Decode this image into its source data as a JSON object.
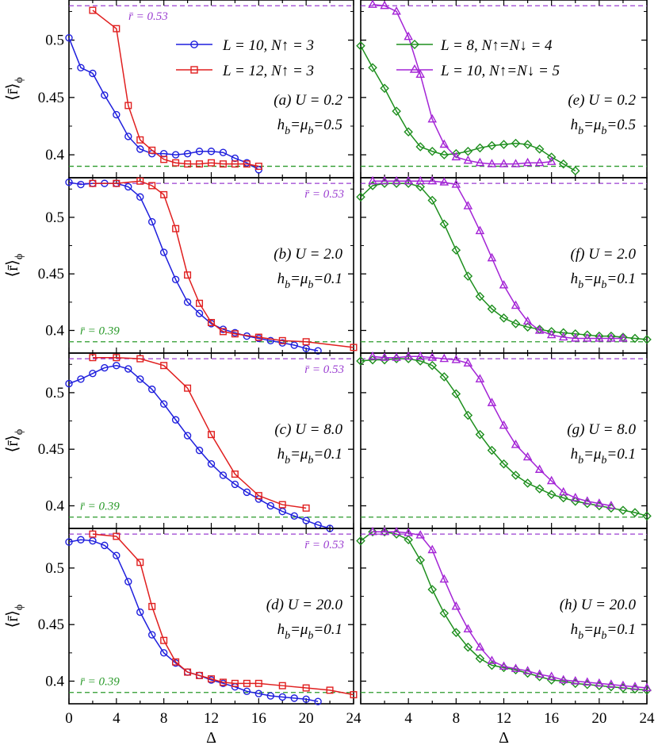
{
  "colors": {
    "blue": "#1f1fdd",
    "red": "#e01f1f",
    "green": "#1e8f1e",
    "purple": "#a424d6",
    "ref_green": "#2a9a2a",
    "ref_purple": "#9b3fd1"
  },
  "labels": {
    "xlabel": "Δ",
    "ylabel": "⟨r̄⟩",
    "ylabel_sub": "ϕ",
    "ref_high": "r̄ = 0.53",
    "ref_low": "r̄ = 0.39"
  },
  "legend": {
    "left": [
      {
        "text": "L = 10, N↑ = 3",
        "color": "#1f1fdd",
        "marker": "circle"
      },
      {
        "text": "L = 12, N↑ = 3",
        "color": "#e01f1f",
        "marker": "square"
      }
    ],
    "right": [
      {
        "text": "L = 8, N↑=N↓ = 4",
        "color": "#1e8f1e",
        "marker": "diamond"
      },
      {
        "text": "L = 10, N↑=N↓ = 5",
        "color": "#a424d6",
        "marker": "triangle"
      }
    ]
  },
  "chart_data": {
    "type": "line",
    "ylim": [
      0.38,
      0.535
    ],
    "yticks": [
      0.4,
      0.45,
      0.5
    ],
    "ytick_labels": [
      "0.4",
      "0.45",
      "0.5"
    ],
    "reference_lines": [
      0.53,
      0.39
    ],
    "columns": [
      {
        "xlim": [
          0,
          24
        ],
        "xticks": [
          0,
          4,
          8,
          12,
          16,
          20,
          24
        ],
        "xtick_labels": [
          "0",
          "4",
          "8",
          "12",
          "16",
          "20",
          "24"
        ]
      },
      {
        "xlim": [
          0,
          24
        ],
        "xticks": [
          4,
          8,
          12,
          16,
          20,
          24
        ],
        "xtick_labels": [
          "4",
          "8",
          "12",
          "16",
          "20",
          "24"
        ]
      }
    ],
    "panels": [
      {
        "id": "a",
        "col": 0,
        "row": 0,
        "label": "(a) U = 0.2",
        "sublabel": "hb=μb=0.5",
        "show_ref_high_label": true,
        "show_ref_low_label": false,
        "series": [
          {
            "name": "L = 10, N↑ = 3",
            "color": "#1f1fdd",
            "marker": "circle",
            "x": [
              0,
              1,
              2,
              3,
              4,
              5,
              6,
              7,
              8,
              9,
              10,
              11,
              12,
              13,
              14,
              15,
              16
            ],
            "y": [
              0.502,
              0.476,
              0.471,
              0.452,
              0.435,
              0.416,
              0.405,
              0.401,
              0.401,
              0.4,
              0.401,
              0.403,
              0.403,
              0.402,
              0.397,
              0.393,
              0.387
            ]
          },
          {
            "name": "L = 12, N↑ = 3",
            "color": "#e01f1f",
            "marker": "square",
            "x": [
              2,
              4,
              5,
              6,
              7,
              8,
              9,
              10,
              11,
              12,
              13,
              14,
              15,
              16
            ],
            "y": [
              0.526,
              0.51,
              0.443,
              0.413,
              0.404,
              0.396,
              0.393,
              0.392,
              0.392,
              0.393,
              0.392,
              0.392,
              0.392,
              0.39
            ]
          }
        ]
      },
      {
        "id": "b",
        "col": 0,
        "row": 1,
        "label": "(b) U = 2.0",
        "sublabel": "hb=μb=0.1",
        "show_ref_high_label": true,
        "show_ref_low_label": true,
        "series": [
          {
            "name": "L = 10, N↑ = 3",
            "color": "#1f1fdd",
            "marker": "circle",
            "x": [
              0,
              1,
              2,
              3,
              4,
              5,
              6,
              7,
              8,
              9,
              10,
              11,
              12,
              13,
              14,
              15,
              16,
              17,
              18,
              19,
              20,
              21
            ],
            "y": [
              0.531,
              0.529,
              0.53,
              0.53,
              0.53,
              0.527,
              0.518,
              0.496,
              0.469,
              0.445,
              0.425,
              0.415,
              0.406,
              0.401,
              0.398,
              0.395,
              0.393,
              0.391,
              0.389,
              0.387,
              0.384,
              0.382
            ]
          },
          {
            "name": "L = 12, N↑ = 3",
            "color": "#e01f1f",
            "marker": "square",
            "x": [
              2,
              4,
              6,
              7,
              8,
              9,
              10,
              11,
              12,
              13,
              14,
              16,
              18,
              20,
              24
            ],
            "y": [
              0.53,
              0.53,
              0.532,
              0.528,
              0.52,
              0.49,
              0.449,
              0.424,
              0.407,
              0.399,
              0.397,
              0.394,
              0.391,
              0.39,
              0.385
            ]
          }
        ]
      },
      {
        "id": "c",
        "col": 0,
        "row": 2,
        "label": "(c) U = 8.0",
        "sublabel": "hb=μb=0.1",
        "show_ref_high_label": true,
        "show_ref_low_label": true,
        "series": [
          {
            "name": "L = 10, N↑ = 3",
            "color": "#1f1fdd",
            "marker": "circle",
            "x": [
              0,
              1,
              2,
              3,
              4,
              5,
              6,
              7,
              8,
              9,
              10,
              11,
              12,
              13,
              14,
              15,
              16,
              17,
              18,
              19,
              20,
              21,
              22
            ],
            "y": [
              0.508,
              0.512,
              0.517,
              0.522,
              0.524,
              0.521,
              0.512,
              0.503,
              0.49,
              0.476,
              0.462,
              0.449,
              0.437,
              0.427,
              0.419,
              0.412,
              0.406,
              0.4,
              0.395,
              0.391,
              0.387,
              0.383,
              0.38
            ]
          },
          {
            "name": "L = 12, N↑ = 3",
            "color": "#e01f1f",
            "marker": "square",
            "x": [
              2,
              4,
              6,
              8,
              10,
              12,
              14,
              16,
              18,
              20
            ],
            "y": [
              0.531,
              0.531,
              0.53,
              0.524,
              0.504,
              0.463,
              0.428,
              0.409,
              0.401,
              0.398
            ]
          }
        ]
      },
      {
        "id": "d",
        "col": 0,
        "row": 3,
        "label": "(d) U = 20.0",
        "sublabel": "hb=μb=0.1",
        "show_ref_high_label": true,
        "show_ref_low_label": true,
        "series": [
          {
            "name": "L = 10, N↑ = 3",
            "color": "#1f1fdd",
            "marker": "circle",
            "x": [
              0,
              1,
              2,
              3,
              4,
              5,
              6,
              7,
              8,
              9,
              10,
              11,
              12,
              13,
              14,
              15,
              16,
              17,
              18,
              19,
              20,
              21
            ],
            "y": [
              0.523,
              0.525,
              0.524,
              0.52,
              0.511,
              0.488,
              0.461,
              0.441,
              0.425,
              0.416,
              0.408,
              0.405,
              0.401,
              0.398,
              0.395,
              0.391,
              0.389,
              0.387,
              0.386,
              0.385,
              0.384,
              0.382
            ]
          },
          {
            "name": "L = 12, N↑ = 3",
            "color": "#e01f1f",
            "marker": "square",
            "x": [
              2,
              4,
              6,
              7,
              8,
              9,
              10,
              11,
              12,
              13,
              14,
              15,
              16,
              18,
              20,
              22,
              24
            ],
            "y": [
              0.53,
              0.528,
              0.505,
              0.466,
              0.436,
              0.417,
              0.408,
              0.405,
              0.402,
              0.399,
              0.398,
              0.398,
              0.398,
              0.396,
              0.394,
              0.392,
              0.388
            ]
          }
        ]
      },
      {
        "id": "e",
        "col": 1,
        "row": 0,
        "label": "(e) U = 0.2",
        "sublabel": "hb=μb=0.5",
        "show_ref_high_label": false,
        "show_ref_low_label": false,
        "series": [
          {
            "name": "L = 8, N↑=N↓ = 4",
            "color": "#1e8f1e",
            "marker": "diamond",
            "x": [
              0,
              1,
              2,
              3,
              4,
              5,
              6,
              7,
              8,
              9,
              10,
              11,
              12,
              13,
              14,
              15,
              16,
              17,
              18
            ],
            "y": [
              0.495,
              0.476,
              0.458,
              0.438,
              0.42,
              0.407,
              0.403,
              0.4,
              0.401,
              0.403,
              0.406,
              0.408,
              0.409,
              0.41,
              0.409,
              0.405,
              0.398,
              0.392,
              0.386
            ]
          },
          {
            "name": "L = 10, N↑=N↓ = 5",
            "color": "#a424d6",
            "marker": "triangle",
            "x": [
              1,
              2,
              3,
              4,
              5,
              6,
              7,
              8,
              9,
              10,
              11,
              12,
              13,
              14,
              15,
              16
            ],
            "y": [
              0.531,
              0.53,
              0.525,
              0.503,
              0.47,
              0.431,
              0.409,
              0.398,
              0.395,
              0.393,
              0.392,
              0.392,
              0.392,
              0.393,
              0.393,
              0.394
            ]
          }
        ]
      },
      {
        "id": "f",
        "col": 1,
        "row": 1,
        "label": "(f) U = 2.0",
        "sublabel": "hb=μb=0.1",
        "show_ref_high_label": false,
        "show_ref_low_label": false,
        "series": [
          {
            "name": "L = 8, N↑=N↓ = 4",
            "color": "#1e8f1e",
            "marker": "diamond",
            "x": [
              0,
              1,
              2,
              3,
              4,
              5,
              6,
              7,
              8,
              9,
              10,
              11,
              12,
              13,
              14,
              15,
              16,
              17,
              18,
              19,
              20,
              21,
              22,
              23,
              24
            ],
            "y": [
              0.518,
              0.528,
              0.53,
              0.53,
              0.53,
              0.527,
              0.515,
              0.494,
              0.471,
              0.448,
              0.43,
              0.419,
              0.411,
              0.406,
              0.403,
              0.401,
              0.399,
              0.398,
              0.397,
              0.396,
              0.395,
              0.395,
              0.394,
              0.393,
              0.392
            ]
          },
          {
            "name": "L = 10, N↑=N↓ = 5",
            "color": "#a424d6",
            "marker": "triangle",
            "x": [
              1,
              2,
              3,
              4,
              5,
              6,
              7,
              8,
              9,
              10,
              11,
              12,
              13,
              14,
              15,
              16,
              17,
              18,
              19,
              20,
              21,
              22
            ],
            "y": [
              0.532,
              0.532,
              0.532,
              0.532,
              0.532,
              0.532,
              0.531,
              0.529,
              0.51,
              0.488,
              0.464,
              0.44,
              0.422,
              0.408,
              0.4,
              0.396,
              0.394,
              0.393,
              0.393,
              0.393,
              0.393,
              0.393
            ]
          }
        ]
      },
      {
        "id": "g",
        "col": 1,
        "row": 2,
        "label": "(g) U = 8.0",
        "sublabel": "hb=μb=0.1",
        "show_ref_high_label": false,
        "show_ref_low_label": false,
        "series": [
          {
            "name": "L = 8, N↑=N↓ = 4",
            "color": "#1e8f1e",
            "marker": "diamond",
            "x": [
              0,
              1,
              2,
              3,
              4,
              5,
              6,
              7,
              8,
              9,
              10,
              11,
              12,
              13,
              14,
              15,
              16,
              17,
              18,
              19,
              20,
              21,
              22,
              23,
              24
            ],
            "y": [
              0.528,
              0.529,
              0.529,
              0.53,
              0.53,
              0.528,
              0.524,
              0.514,
              0.499,
              0.48,
              0.463,
              0.449,
              0.437,
              0.427,
              0.42,
              0.415,
              0.41,
              0.407,
              0.404,
              0.402,
              0.4,
              0.398,
              0.396,
              0.394,
              0.391
            ]
          },
          {
            "name": "L = 10, N↑=N↓ = 5",
            "color": "#a424d6",
            "marker": "triangle",
            "x": [
              1,
              2,
              3,
              4,
              5,
              6,
              7,
              8,
              9,
              10,
              11,
              12,
              13,
              14,
              15,
              16,
              17,
              18,
              19,
              20,
              21
            ],
            "y": [
              0.532,
              0.531,
              0.531,
              0.532,
              0.532,
              0.531,
              0.53,
              0.529,
              0.526,
              0.512,
              0.491,
              0.471,
              0.454,
              0.443,
              0.432,
              0.422,
              0.412,
              0.407,
              0.404,
              0.402,
              0.4
            ]
          }
        ]
      },
      {
        "id": "h",
        "col": 1,
        "row": 3,
        "label": "(h) U = 20.0",
        "sublabel": "hb=μb=0.1",
        "show_ref_high_label": false,
        "show_ref_low_label": false,
        "series": [
          {
            "name": "L = 8, N↑=N↓ = 4",
            "color": "#1e8f1e",
            "marker": "diamond",
            "x": [
              0,
              1,
              2,
              3,
              4,
              5,
              6,
              7,
              8,
              9,
              10,
              11,
              12,
              13,
              14,
              15,
              16,
              17,
              18,
              19,
              20,
              21,
              22,
              23,
              24
            ],
            "y": [
              0.524,
              0.532,
              0.532,
              0.53,
              0.525,
              0.507,
              0.481,
              0.46,
              0.443,
              0.43,
              0.42,
              0.414,
              0.412,
              0.41,
              0.407,
              0.404,
              0.401,
              0.4,
              0.398,
              0.397,
              0.396,
              0.395,
              0.394,
              0.393,
              0.392
            ]
          },
          {
            "name": "L = 10, N↑=N↓ = 5",
            "color": "#a424d6",
            "marker": "triangle",
            "x": [
              1,
              2,
              3,
              4,
              5,
              6,
              7,
              8,
              9,
              10,
              11,
              12,
              13,
              14,
              15,
              16,
              17,
              18,
              19,
              20,
              21,
              22,
              23,
              24
            ],
            "y": [
              0.532,
              0.532,
              0.532,
              0.531,
              0.529,
              0.516,
              0.49,
              0.466,
              0.446,
              0.43,
              0.418,
              0.413,
              0.411,
              0.409,
              0.406,
              0.404,
              0.401,
              0.4,
              0.399,
              0.398,
              0.397,
              0.396,
              0.395,
              0.394
            ]
          }
        ]
      }
    ]
  }
}
